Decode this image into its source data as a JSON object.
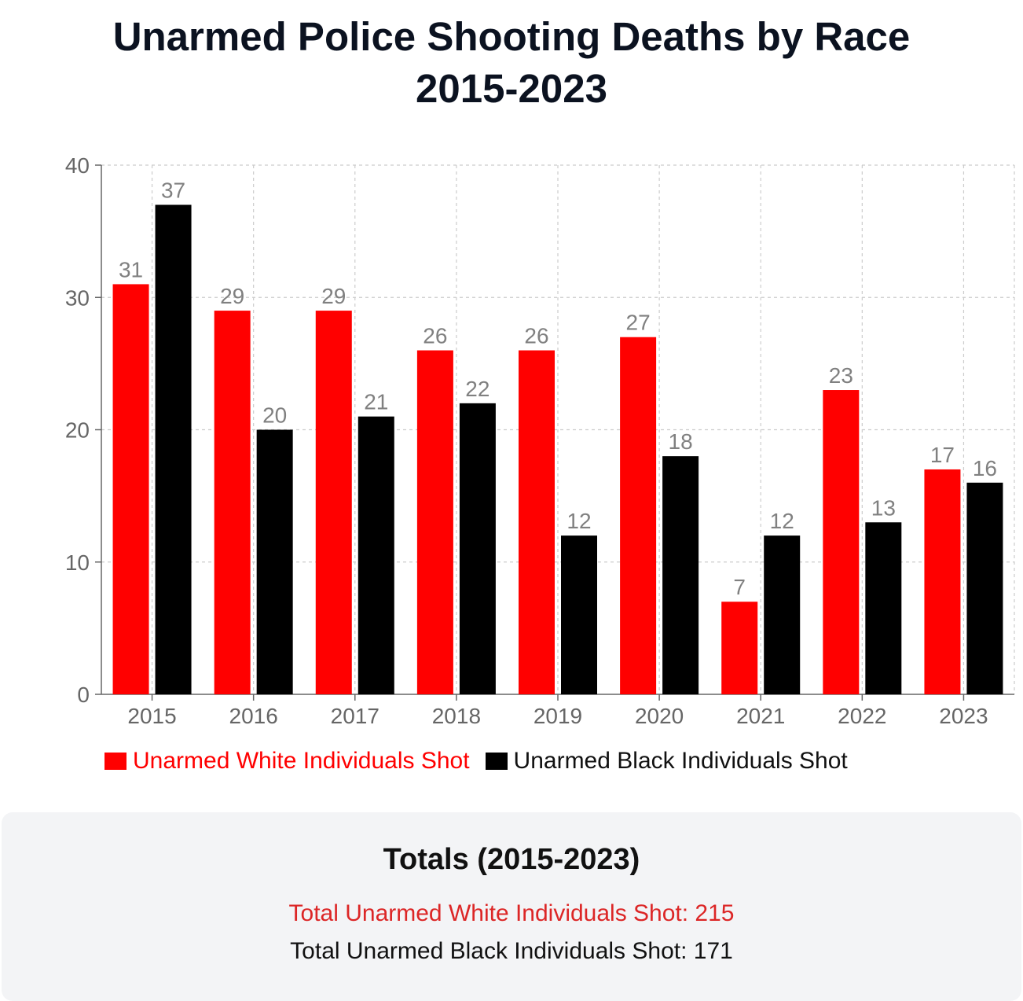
{
  "title_lines": [
    "Unarmed Police Shooting Deaths by Race",
    "2015-2023"
  ],
  "colors": {
    "white_series": "#ff0000",
    "black_series": "#000000",
    "white_text": "#ff0000",
    "totals_white_text": "#dc2626",
    "axis": "#666666",
    "grid": "#cccccc",
    "label": "#808080"
  },
  "chart_data": {
    "type": "bar",
    "title": "Unarmed Police Shooting Deaths by Race 2015-2023",
    "categories": [
      "2015",
      "2016",
      "2017",
      "2018",
      "2019",
      "2020",
      "2021",
      "2022",
      "2023"
    ],
    "series": [
      {
        "name": "Unarmed White Individuals Shot",
        "values": [
          31,
          29,
          29,
          26,
          26,
          27,
          7,
          23,
          17
        ]
      },
      {
        "name": "Unarmed Black Individuals Shot",
        "values": [
          37,
          20,
          21,
          22,
          12,
          18,
          12,
          13,
          16
        ]
      }
    ],
    "ylim": [
      0,
      40
    ],
    "yticks": [
      0,
      10,
      20,
      30,
      40
    ],
    "grid": true,
    "legend_position": "bottom",
    "data_labels": true,
    "xlabel": "",
    "ylabel": ""
  },
  "totals": {
    "heading": "Totals (2015-2023)",
    "white": "Total Unarmed White Individuals Shot: 215",
    "black": "Total Unarmed Black Individuals Shot: 171"
  }
}
